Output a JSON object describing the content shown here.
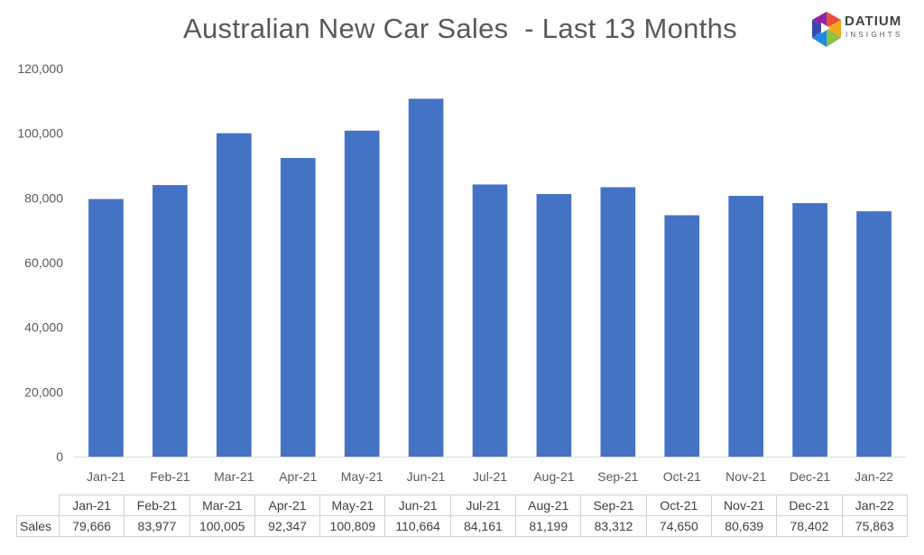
{
  "chart_data": {
    "type": "bar",
    "title": "Australian New Car Sales  - Last 13 Months",
    "categories": [
      "Jan-21",
      "Feb-21",
      "Mar-21",
      "Apr-21",
      "May-21",
      "Jun-21",
      "Jul-21",
      "Aug-21",
      "Sep-21",
      "Oct-21",
      "Nov-21",
      "Dec-21",
      "Jan-22"
    ],
    "series": [
      {
        "name": "Sales",
        "values": [
          79666,
          83977,
          100005,
          92347,
          100809,
          110664,
          84161,
          81199,
          83312,
          74650,
          80639,
          78402,
          75863
        ],
        "labels": [
          "79,666",
          "83,977",
          "100,005",
          "92,347",
          "100,809",
          "110,664",
          "84,161",
          "81,199",
          "83,312",
          "74,650",
          "80,639",
          "78,402",
          "75,863"
        ]
      }
    ],
    "ylim": [
      0,
      120000
    ],
    "y_ticks": [
      0,
      20000,
      40000,
      60000,
      80000,
      100000,
      120000
    ],
    "y_tick_labels": [
      "0",
      "20,000",
      "40,000",
      "60,000",
      "80,000",
      "100,000",
      "120,000"
    ],
    "grid": false,
    "legend": "none",
    "data_table": true,
    "bar_color": "#4472C4"
  },
  "logo": {
    "word": "DATIUM",
    "sub": "INSIGHTS"
  }
}
